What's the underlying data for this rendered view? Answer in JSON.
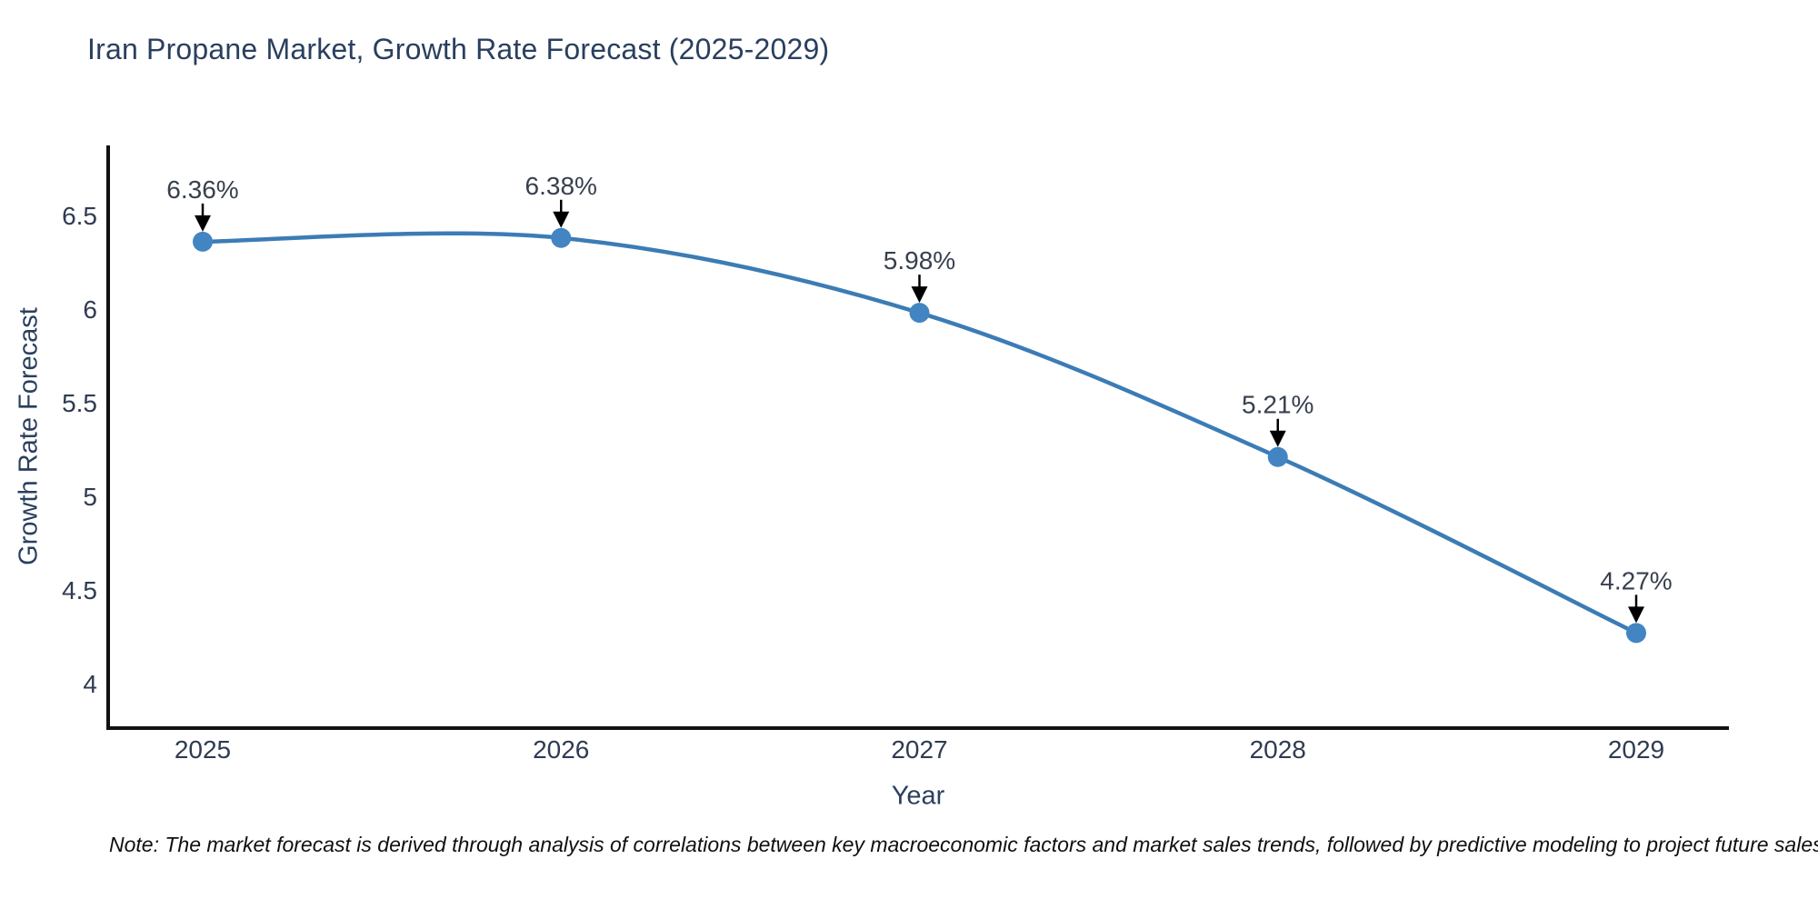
{
  "chart": {
    "title": "Iran Propane Market, Growth Rate Forecast (2025-2029)",
    "xlabel": "Year",
    "ylabel": "Growth Rate Forecast",
    "note": "Note: The market forecast is derived through analysis of correlations between key macroeconomic factors and market sales trends, followed by predictive modeling to project future sales"
  },
  "chart_data": {
    "type": "line",
    "title": "Iran Propane Market, Growth Rate Forecast (2025-2029)",
    "xlabel": "Year",
    "ylabel": "Growth Rate Forecast",
    "x": [
      2025,
      2026,
      2027,
      2028,
      2029
    ],
    "values": [
      6.36,
      6.38,
      5.98,
      5.21,
      4.27
    ],
    "point_labels": [
      "6.36%",
      "6.38%",
      "5.98%",
      "5.21%",
      "4.27%"
    ],
    "x_tick_labels": [
      "2025",
      "2026",
      "2027",
      "2028",
      "2029"
    ],
    "y_ticks": [
      4,
      4.5,
      5,
      5.5,
      6,
      6.5
    ],
    "y_tick_labels": [
      "4",
      "4.5",
      "5",
      "5.5",
      "6",
      "6.5"
    ],
    "ylim": [
      3.762,
      6.874
    ],
    "line_shape": "spline",
    "grid": false,
    "legend": "none",
    "annotations_style": "value label with down arrow above each point",
    "colors": {
      "line": "#3c7cb5",
      "marker": "#4285c2",
      "axis": "#111111",
      "arrow": "#000000",
      "tick_label": "#2f3b52",
      "annotation_label": "#38404f",
      "title": "#2a3f5f",
      "background": "#ffffff"
    }
  }
}
